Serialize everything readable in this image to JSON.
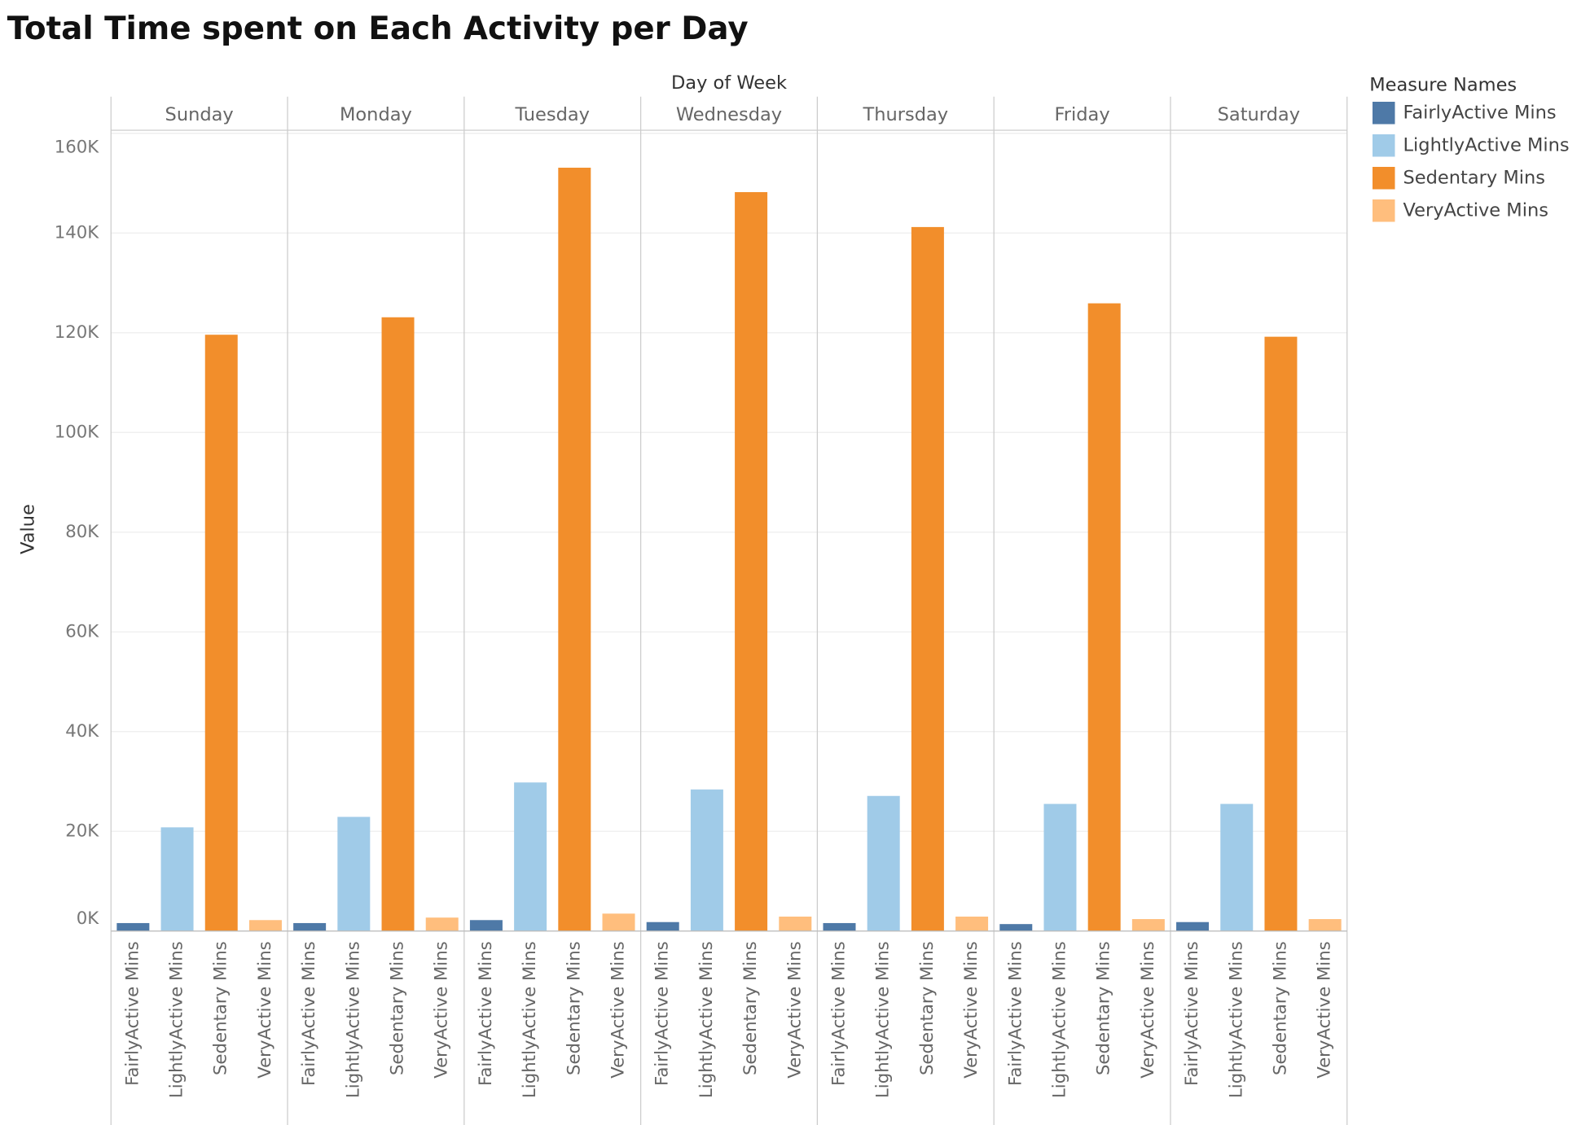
{
  "chart_data": {
    "type": "bar",
    "title": "Total Time spent on Each Activity per Day",
    "facet_label": "Day of Week",
    "ylabel": "Value",
    "legend_title": "Measure Names",
    "categories": [
      "Sunday",
      "Monday",
      "Tuesday",
      "Wednesday",
      "Thursday",
      "Friday",
      "Saturday"
    ],
    "series": [
      {
        "name": "FairlyActive Mins",
        "color": "#4e79a7",
        "values": [
          1600,
          1600,
          2200,
          1800,
          1600,
          1400,
          1800
        ]
      },
      {
        "name": "LightlyActive Mins",
        "color": "#a0cbe8",
        "values": [
          20800,
          22900,
          29800,
          28400,
          27100,
          25500,
          25500
        ]
      },
      {
        "name": "Sedentary Mins",
        "color": "#f28e2b",
        "values": [
          119600,
          123100,
          153100,
          148200,
          141200,
          125900,
          119200
        ]
      },
      {
        "name": "VeryActive Mins",
        "color": "#ffbe7d",
        "values": [
          2200,
          2700,
          3500,
          2900,
          2900,
          2400,
          2400
        ]
      }
    ],
    "ylim": [
      0,
      160000
    ],
    "yticks": [
      {
        "value": 0,
        "label": "0K"
      },
      {
        "value": 20000,
        "label": "20K"
      },
      {
        "value": 40000,
        "label": "40K"
      },
      {
        "value": 60000,
        "label": "60K"
      },
      {
        "value": 80000,
        "label": "80K"
      },
      {
        "value": 100000,
        "label": "100K"
      },
      {
        "value": 120000,
        "label": "120K"
      },
      {
        "value": 140000,
        "label": "140K"
      },
      {
        "value": 160000,
        "label": "160K"
      }
    ],
    "grid": true
  }
}
